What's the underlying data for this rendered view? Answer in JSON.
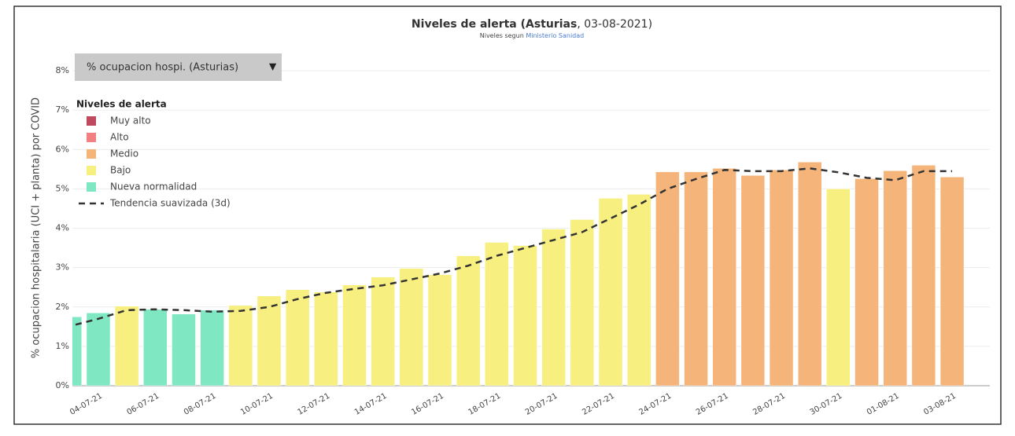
{
  "chart_data": {
    "type": "bar",
    "title_bold": "Niveles de alerta (Asturias",
    "title_rest": ", 03-08-2021)",
    "subtitle": "Niveles segun",
    "subtitle_link": "Ministerio Sanidad",
    "dropdown": "% ocupacion hospi. (Asturias)",
    "dropdown_arrow": "▼",
    "y_label": "% ocupacion hospitalaria (UCI + planta) por COVID",
    "legend_title": "Niveles de alerta",
    "legend": [
      {
        "name": "Muy alto",
        "color": "#c0485f"
      },
      {
        "name": "Alto",
        "color": "#f28080"
      },
      {
        "name": "Medio",
        "color": "#f5b57a"
      },
      {
        "name": "Bajo",
        "color": "#f7ef7f"
      },
      {
        "name": "Nueva normalidad",
        "color": "#7fe8c3"
      }
    ],
    "trend_name": "Tendencia suavizada (3d)",
    "trend_color": "#333333",
    "categories": [
      null,
      "04-07-21",
      null,
      "06-07-21",
      null,
      "08-07-21",
      null,
      "10-07-21",
      null,
      "12-07-21",
      null,
      "14-07-21",
      null,
      "16-07-21",
      null,
      "18-07-21",
      null,
      "20-07-21",
      null,
      "22-07-21",
      null,
      "24-07-21",
      null,
      "26-07-21",
      null,
      "28-07-21",
      null,
      "30-07-21",
      null,
      "01-08-21",
      null,
      "03-08-21"
    ],
    "values": [
      1.75,
      1.85,
      2.02,
      1.94,
      1.82,
      1.92,
      2.04,
      2.28,
      2.44,
      2.38,
      2.56,
      2.76,
      2.98,
      2.82,
      3.3,
      3.64,
      3.56,
      3.98,
      4.22,
      4.76,
      4.86,
      5.43,
      5.43,
      5.52,
      5.34,
      5.48,
      5.68,
      5.0,
      5.26,
      5.46,
      5.6,
      5.3
    ],
    "bar_colors": [
      "#7fe8c3",
      "#7fe8c3",
      "#f7ef7f",
      "#7fe8c3",
      "#7fe8c3",
      "#7fe8c3",
      "#f7ef7f",
      "#f7ef7f",
      "#f7ef7f",
      "#f7ef7f",
      "#f7ef7f",
      "#f7ef7f",
      "#f7ef7f",
      "#f7ef7f",
      "#f7ef7f",
      "#f7ef7f",
      "#f7ef7f",
      "#f7ef7f",
      "#f7ef7f",
      "#f7ef7f",
      "#f7ef7f",
      "#f5b57a",
      "#f5b57a",
      "#f5b57a",
      "#f5b57a",
      "#f5b57a",
      "#f5b57a",
      "#f7ef7f",
      "#f5b57a",
      "#f5b57a",
      "#f5b57a",
      "#f5b57a"
    ],
    "trend": [
      1.55,
      1.7,
      1.92,
      1.94,
      1.92,
      1.88,
      1.9,
      2.0,
      2.2,
      2.36,
      2.46,
      2.55,
      2.7,
      2.85,
      3.05,
      3.3,
      3.5,
      3.7,
      3.9,
      4.25,
      4.6,
      5.0,
      5.25,
      5.48,
      5.45,
      5.45,
      5.52,
      5.42,
      5.28,
      5.22,
      5.45,
      5.45
    ],
    "ylim": [
      0,
      8
    ],
    "yticks": [
      {
        "value": 0,
        "label": "0%"
      },
      {
        "value": 1,
        "label": "1%"
      },
      {
        "value": 2,
        "label": "2%"
      },
      {
        "value": 3,
        "label": "3%"
      },
      {
        "value": 4,
        "label": "4%"
      },
      {
        "value": 5,
        "label": "5%"
      },
      {
        "value": 6,
        "label": "6%"
      },
      {
        "value": 7,
        "label": "7%"
      },
      {
        "value": 8,
        "label": "8%"
      }
    ],
    "grid": true
  }
}
